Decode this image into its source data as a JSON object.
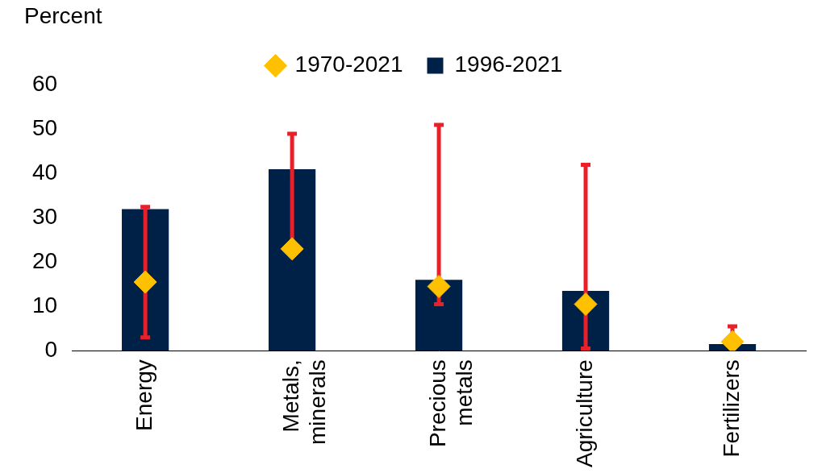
{
  "chart_data": {
    "type": "bar",
    "y_label": "Percent",
    "categories": [
      "Energy",
      "Metals, minerals",
      "Precious metals",
      "Agriculture",
      "Fertilizers"
    ],
    "series": [
      {
        "name": "1996-2021",
        "type": "bar",
        "color": "#002147",
        "values": [
          32,
          41,
          16,
          13.5,
          1.5
        ],
        "error_low": [
          3,
          24,
          10.5,
          0.5,
          1
        ],
        "error_high": [
          32.5,
          49,
          51,
          42,
          5.5
        ]
      },
      {
        "name": "1970-2021",
        "type": "scatter",
        "marker": "diamond",
        "color": "#ffc000",
        "values": [
          15.5,
          23,
          14.5,
          10.5,
          2
        ]
      }
    ],
    "ylim": [
      0,
      60
    ],
    "yticks": [
      0,
      10,
      20,
      30,
      40,
      50,
      60
    ],
    "grid": false,
    "legend": "top"
  }
}
